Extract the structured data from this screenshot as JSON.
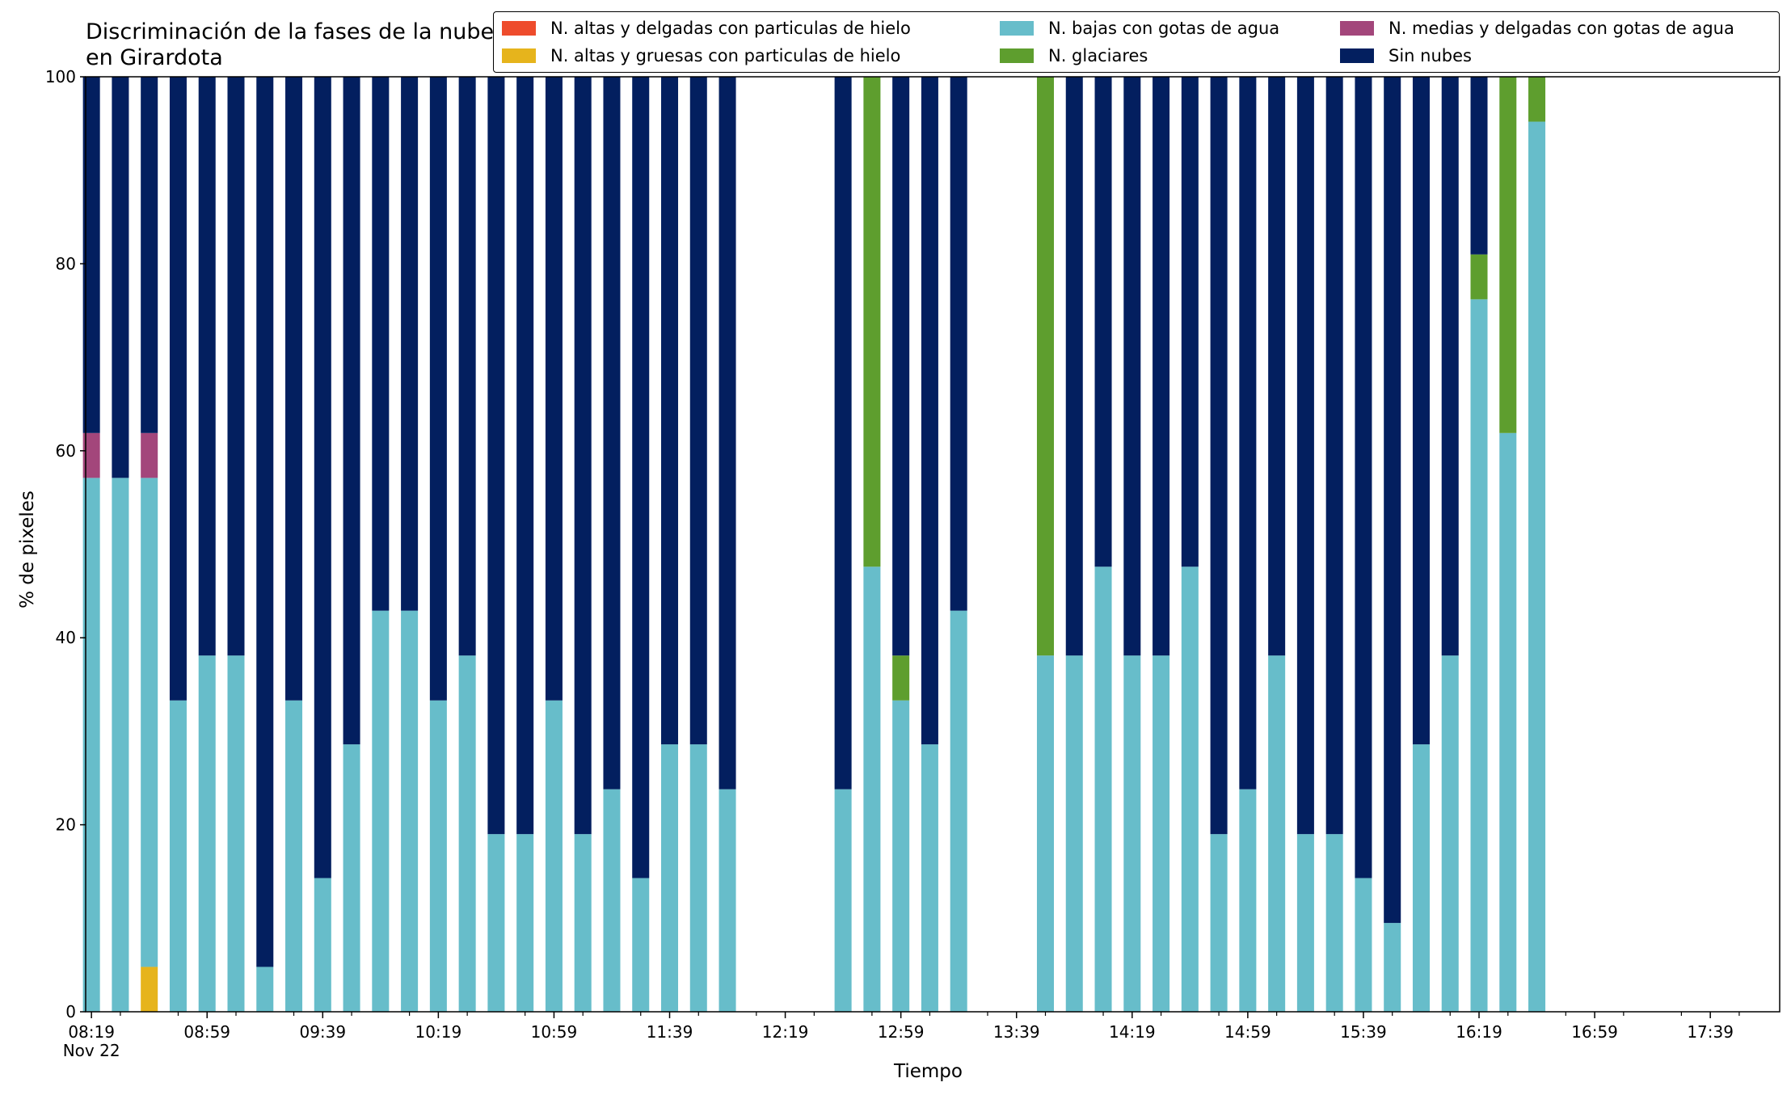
{
  "chart_data": {
    "type": "bar",
    "stacked": true,
    "title": "Discriminación de la fases de la nube en Girardota",
    "xlabel": "Tiempo",
    "ylabel": "% de pixeles",
    "ylim": [
      0,
      100
    ],
    "yticks": [
      0,
      20,
      40,
      60,
      80,
      100
    ],
    "xlim_minutes_from_0819": [
      -2,
      584
    ],
    "xtick_labels": [
      "08:19\nNov 22",
      "08:59",
      "09:39",
      "10:19",
      "10:59",
      "11:39",
      "12:19",
      "12:59",
      "13:39",
      "14:19",
      "14:59",
      "15:39",
      "16:19",
      "16:59",
      "17:39"
    ],
    "legend_position": "top-right",
    "series": [
      {
        "name": "N. altas y delgadas con particulas de hielo",
        "color": "#ee4c2c"
      },
      {
        "name": "N. altas y gruesas con particulas de hielo",
        "color": "#e6b41c"
      },
      {
        "name": "N. medias y delgadas con gotas de agua",
        "color": "#a3467b"
      },
      {
        "name": "N. bajas con gotas de agua",
        "color": "#67bdca"
      },
      {
        "name": "N. glaciares",
        "color": "#5e9e2e"
      },
      {
        "name": "Sin nubes",
        "color": "#031f5f"
      }
    ],
    "stack_order": [
      "N. altas y delgadas con particulas de hielo",
      "N. altas y gruesas con particulas de hielo",
      "N. bajas con gotas de agua",
      "N. medias y delgadas con gotas de agua",
      "N. glaciares",
      "Sin nubes"
    ],
    "bars": [
      {
        "time": "08:19",
        "altas_hielo": 0,
        "gruesas_hielo": 0,
        "bajas": 57.1,
        "medias": 4.8,
        "glaciares": 0,
        "sin_nubes": 38.1
      },
      {
        "time": "08:29",
        "altas_hielo": 0,
        "gruesas_hielo": 0,
        "bajas": 57.1,
        "medias": 0,
        "glaciares": 0,
        "sin_nubes": 42.9
      },
      {
        "time": "08:39",
        "altas_hielo": 0,
        "gruesas_hielo": 4.8,
        "bajas": 52.3,
        "medias": 4.8,
        "glaciares": 0,
        "sin_nubes": 38.1
      },
      {
        "time": "08:49",
        "altas_hielo": 0,
        "gruesas_hielo": 0,
        "bajas": 33.3,
        "medias": 0,
        "glaciares": 0,
        "sin_nubes": 66.7
      },
      {
        "time": "08:59",
        "altas_hielo": 0,
        "gruesas_hielo": 0,
        "bajas": 38.1,
        "medias": 0,
        "glaciares": 0,
        "sin_nubes": 61.9
      },
      {
        "time": "09:09",
        "altas_hielo": 0,
        "gruesas_hielo": 0,
        "bajas": 38.1,
        "medias": 0,
        "glaciares": 0,
        "sin_nubes": 61.9
      },
      {
        "time": "09:19",
        "altas_hielo": 0,
        "gruesas_hielo": 0,
        "bajas": 4.8,
        "medias": 0,
        "glaciares": 0,
        "sin_nubes": 95.2
      },
      {
        "time": "09:29",
        "altas_hielo": 0,
        "gruesas_hielo": 0,
        "bajas": 33.3,
        "medias": 0,
        "glaciares": 0,
        "sin_nubes": 66.7
      },
      {
        "time": "09:39",
        "altas_hielo": 0,
        "gruesas_hielo": 0,
        "bajas": 14.3,
        "medias": 0,
        "glaciares": 0,
        "sin_nubes": 85.7
      },
      {
        "time": "09:49",
        "altas_hielo": 0,
        "gruesas_hielo": 0,
        "bajas": 28.6,
        "medias": 0,
        "glaciares": 0,
        "sin_nubes": 71.4
      },
      {
        "time": "09:59",
        "altas_hielo": 0,
        "gruesas_hielo": 0,
        "bajas": 42.9,
        "medias": 0,
        "glaciares": 0,
        "sin_nubes": 57.1
      },
      {
        "time": "10:09",
        "altas_hielo": 0,
        "gruesas_hielo": 0,
        "bajas": 42.9,
        "medias": 0,
        "glaciares": 0,
        "sin_nubes": 57.1
      },
      {
        "time": "10:19",
        "altas_hielo": 0,
        "gruesas_hielo": 0,
        "bajas": 33.3,
        "medias": 0,
        "glaciares": 0,
        "sin_nubes": 66.7
      },
      {
        "time": "10:29",
        "altas_hielo": 0,
        "gruesas_hielo": 0,
        "bajas": 38.1,
        "medias": 0,
        "glaciares": 0,
        "sin_nubes": 61.9
      },
      {
        "time": "10:39",
        "altas_hielo": 0,
        "gruesas_hielo": 0,
        "bajas": 19.0,
        "medias": 0,
        "glaciares": 0,
        "sin_nubes": 81.0
      },
      {
        "time": "10:49",
        "altas_hielo": 0,
        "gruesas_hielo": 0,
        "bajas": 19.0,
        "medias": 0,
        "glaciares": 0,
        "sin_nubes": 81.0
      },
      {
        "time": "10:59",
        "altas_hielo": 0,
        "gruesas_hielo": 0,
        "bajas": 33.3,
        "medias": 0,
        "glaciares": 0,
        "sin_nubes": 66.7
      },
      {
        "time": "11:09",
        "altas_hielo": 0,
        "gruesas_hielo": 0,
        "bajas": 19.0,
        "medias": 0,
        "glaciares": 0,
        "sin_nubes": 81.0
      },
      {
        "time": "11:19",
        "altas_hielo": 0,
        "gruesas_hielo": 0,
        "bajas": 23.8,
        "medias": 0,
        "glaciares": 0,
        "sin_nubes": 76.2
      },
      {
        "time": "11:29",
        "altas_hielo": 0,
        "gruesas_hielo": 0,
        "bajas": 14.3,
        "medias": 0,
        "glaciares": 0,
        "sin_nubes": 85.7
      },
      {
        "time": "11:39",
        "altas_hielo": 0,
        "gruesas_hielo": 0,
        "bajas": 28.6,
        "medias": 0,
        "glaciares": 0,
        "sin_nubes": 71.4
      },
      {
        "time": "11:49",
        "altas_hielo": 0,
        "gruesas_hielo": 0,
        "bajas": 28.6,
        "medias": 0,
        "glaciares": 0,
        "sin_nubes": 71.4
      },
      {
        "time": "11:59",
        "altas_hielo": 0,
        "gruesas_hielo": 0,
        "bajas": 23.8,
        "medias": 0,
        "glaciares": 0,
        "sin_nubes": 76.2
      },
      {
        "time": "12:39",
        "altas_hielo": 0,
        "gruesas_hielo": 0,
        "bajas": 23.8,
        "medias": 0,
        "glaciares": 0,
        "sin_nubes": 76.2
      },
      {
        "time": "12:49",
        "altas_hielo": 0,
        "gruesas_hielo": 0,
        "bajas": 47.6,
        "medias": 0,
        "glaciares": 52.4,
        "sin_nubes": 0
      },
      {
        "time": "12:59",
        "altas_hielo": 0,
        "gruesas_hielo": 0,
        "bajas": 33.3,
        "medias": 0,
        "glaciares": 4.8,
        "sin_nubes": 61.9
      },
      {
        "time": "13:09",
        "altas_hielo": 0,
        "gruesas_hielo": 0,
        "bajas": 28.6,
        "medias": 0,
        "glaciares": 0,
        "sin_nubes": 71.4
      },
      {
        "time": "13:19",
        "altas_hielo": 0,
        "gruesas_hielo": 0,
        "bajas": 42.9,
        "medias": 0,
        "glaciares": 0,
        "sin_nubes": 57.1
      },
      {
        "time": "13:49",
        "altas_hielo": 0,
        "gruesas_hielo": 0,
        "bajas": 38.1,
        "medias": 0,
        "glaciares": 61.9,
        "sin_nubes": 0
      },
      {
        "time": "13:59",
        "altas_hielo": 0,
        "gruesas_hielo": 0,
        "bajas": 38.1,
        "medias": 0,
        "glaciares": 0,
        "sin_nubes": 61.9
      },
      {
        "time": "14:09",
        "altas_hielo": 0,
        "gruesas_hielo": 0,
        "bajas": 47.6,
        "medias": 0,
        "glaciares": 0,
        "sin_nubes": 52.4
      },
      {
        "time": "14:19",
        "altas_hielo": 0,
        "gruesas_hielo": 0,
        "bajas": 38.1,
        "medias": 0,
        "glaciares": 0,
        "sin_nubes": 61.9
      },
      {
        "time": "14:29",
        "altas_hielo": 0,
        "gruesas_hielo": 0,
        "bajas": 38.1,
        "medias": 0,
        "glaciares": 0,
        "sin_nubes": 61.9
      },
      {
        "time": "14:39",
        "altas_hielo": 0,
        "gruesas_hielo": 0,
        "bajas": 47.6,
        "medias": 0,
        "glaciares": 0,
        "sin_nubes": 52.4
      },
      {
        "time": "14:49",
        "altas_hielo": 0,
        "gruesas_hielo": 0,
        "bajas": 19.0,
        "medias": 0,
        "glaciares": 0,
        "sin_nubes": 81.0
      },
      {
        "time": "14:59",
        "altas_hielo": 0,
        "gruesas_hielo": 0,
        "bajas": 23.8,
        "medias": 0,
        "glaciares": 0,
        "sin_nubes": 76.2
      },
      {
        "time": "15:09",
        "altas_hielo": 0,
        "gruesas_hielo": 0,
        "bajas": 38.1,
        "medias": 0,
        "glaciares": 0,
        "sin_nubes": 61.9
      },
      {
        "time": "15:19",
        "altas_hielo": 0,
        "gruesas_hielo": 0,
        "bajas": 19.0,
        "medias": 0,
        "glaciares": 0,
        "sin_nubes": 81.0
      },
      {
        "time": "15:29",
        "altas_hielo": 0,
        "gruesas_hielo": 0,
        "bajas": 19.0,
        "medias": 0,
        "glaciares": 0,
        "sin_nubes": 81.0
      },
      {
        "time": "15:39",
        "altas_hielo": 0,
        "gruesas_hielo": 0,
        "bajas": 14.3,
        "medias": 0,
        "glaciares": 0,
        "sin_nubes": 85.7
      },
      {
        "time": "15:49",
        "altas_hielo": 0,
        "gruesas_hielo": 0,
        "bajas": 9.5,
        "medias": 0,
        "glaciares": 0,
        "sin_nubes": 90.5
      },
      {
        "time": "15:59",
        "altas_hielo": 0,
        "gruesas_hielo": 0,
        "bajas": 28.6,
        "medias": 0,
        "glaciares": 0,
        "sin_nubes": 71.4
      },
      {
        "time": "16:09",
        "altas_hielo": 0,
        "gruesas_hielo": 0,
        "bajas": 38.1,
        "medias": 0,
        "glaciares": 0,
        "sin_nubes": 61.9
      },
      {
        "time": "16:19",
        "altas_hielo": 0,
        "gruesas_hielo": 0,
        "bajas": 76.2,
        "medias": 0,
        "glaciares": 4.8,
        "sin_nubes": 19.0
      },
      {
        "time": "16:29",
        "altas_hielo": 0,
        "gruesas_hielo": 0,
        "bajas": 61.9,
        "medias": 0,
        "glaciares": 38.1,
        "sin_nubes": 0
      },
      {
        "time": "16:39",
        "altas_hielo": 0,
        "gruesas_hielo": 0,
        "bajas": 95.2,
        "medias": 0,
        "glaciares": 4.8,
        "sin_nubes": 0
      }
    ]
  }
}
